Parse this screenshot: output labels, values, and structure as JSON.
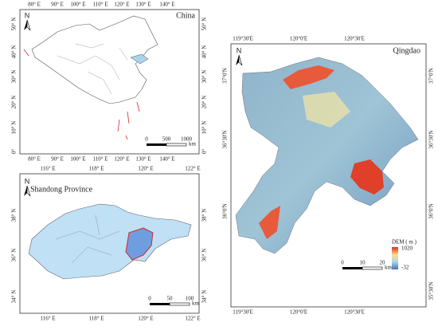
{
  "panels": [
    {
      "title": "China",
      "north": "N",
      "top_labels": [
        "80° E",
        "90° E",
        "100° E",
        "110° E",
        "120° E",
        "130° E",
        "140° E"
      ],
      "bottom_labels": [
        "80° E",
        "90° E",
        "100° E",
        "110° E",
        "120° E",
        "130° E",
        "140° E"
      ],
      "left_labels": [
        "50° N",
        "40° N",
        "30° N",
        "20° N",
        "10° N",
        "0°"
      ],
      "right_labels": [
        "50° N",
        "40° N",
        "30° N",
        "20° N",
        "10° N",
        "0°"
      ],
      "scale": [
        "0",
        "500",
        "1000"
      ],
      "scale_unit": "km"
    },
    {
      "title": "Shandong Province",
      "north": "N",
      "top_labels": [
        "116° E",
        "118° E",
        "120° E",
        "122° E"
      ],
      "bottom_labels": [
        "116° E",
        "118° E",
        "120° E",
        "122° E"
      ],
      "left_labels": [
        "38° N",
        "36° N",
        "34° N"
      ],
      "right_labels": [
        "38° N",
        "36° N",
        "34° N"
      ],
      "scale": [
        "0",
        "50",
        "100"
      ],
      "scale_unit": "km"
    },
    {
      "title": "Qingdao",
      "north": "N",
      "top_labels": [
        "119°30'E",
        "120°0'E",
        "120°30'E"
      ],
      "bottom_labels": [
        "119°30'E",
        "120°0'E",
        "120°30'E"
      ],
      "left_labels": [
        "37°0'N",
        "36°30'N",
        "36°0'N"
      ],
      "right_labels": [
        "37°0'N",
        "36°30'N",
        "36°0'N",
        "35°30'N"
      ],
      "scale": [
        "0",
        "10",
        "20"
      ],
      "scale_unit": "km"
    }
  ],
  "legend": {
    "title": "DEM ( m )",
    "max": "1020",
    "min": "-32"
  }
}
